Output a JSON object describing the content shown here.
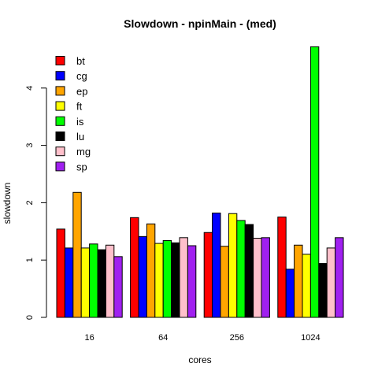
{
  "chart_data": {
    "type": "bar",
    "title": "Slowdown - npinMain - (med)",
    "xlabel": "cores",
    "ylabel": "slowdown",
    "categories": [
      "16",
      "64",
      "256",
      "1024"
    ],
    "ylim": [
      0,
      5
    ],
    "yticks": [
      0,
      1,
      2,
      3,
      4
    ],
    "grid": false,
    "legend_position": "top-left",
    "series": [
      {
        "name": "bt",
        "color": "#ff0000",
        "values": [
          1.54,
          1.74,
          1.48,
          1.75
        ]
      },
      {
        "name": "cg",
        "color": "#0000ff",
        "values": [
          1.21,
          1.41,
          1.82,
          0.84
        ]
      },
      {
        "name": "ep",
        "color": "#ffa500",
        "values": [
          2.18,
          1.63,
          1.24,
          1.26
        ]
      },
      {
        "name": "ft",
        "color": "#ffff00",
        "values": [
          1.21,
          1.29,
          1.81,
          1.1
        ]
      },
      {
        "name": "is",
        "color": "#00ff00",
        "values": [
          1.28,
          1.34,
          1.69,
          4.72
        ]
      },
      {
        "name": "lu",
        "color": "#000000",
        "values": [
          1.18,
          1.3,
          1.62,
          0.94
        ]
      },
      {
        "name": "mg",
        "color": "#ffc0cb",
        "values": [
          1.26,
          1.39,
          1.38,
          1.21
        ]
      },
      {
        "name": "sp",
        "color": "#a020f0",
        "values": [
          1.06,
          1.25,
          1.39,
          1.39
        ]
      }
    ]
  }
}
